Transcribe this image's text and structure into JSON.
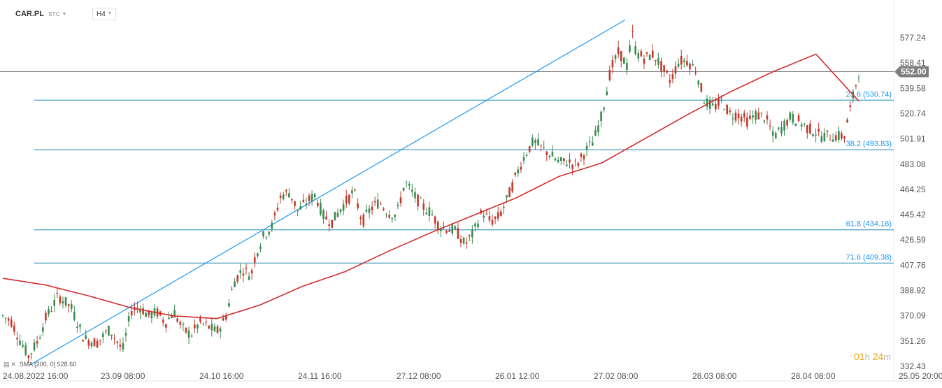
{
  "header": {
    "symbol": "CAR.PL",
    "market": "STC",
    "timeframe": "H4"
  },
  "indicator": {
    "label": "SMA",
    "params": "[200,  0]",
    "value": "528.60"
  },
  "countdown": {
    "hours": "01",
    "hours_unit": "h",
    "minutes": "24",
    "minutes_unit": "m"
  },
  "colors": {
    "up": "#3a8a50",
    "down": "#c0392b",
    "sma": "#d12e2e",
    "trend": "#2196f3",
    "fib": "#1e88b0",
    "price_line": "#777777",
    "price_label_bg": "#7d7d7d",
    "fib_label": "#2196f3"
  },
  "chart_data": {
    "type": "candlestick",
    "symbol": "CAR.PL",
    "timeframe": "H4",
    "y_ticks": [
      "577.24",
      "558.41",
      "539.58",
      "520.74",
      "501.91",
      "483.08",
      "464.25",
      "445.42",
      "426.59",
      "407.76",
      "388.92",
      "370.09",
      "351.26",
      "332.43"
    ],
    "x_ticks": [
      "24.08.2022  16:00",
      "23.09  08:00",
      "24.10  16:00",
      "24.11  16:00",
      "27.12  08:00",
      "26.01  12:00",
      "27.02  08:00",
      "28.03  08:00",
      "28.04  08:00",
      "25.05  20:00"
    ],
    "ylim": [
      332.43,
      577.24
    ],
    "current_price": {
      "value": 552.0,
      "label": "552.00"
    },
    "fibonacci": [
      {
        "label": "23.6 (530.74)",
        "value": 530.74
      },
      {
        "label": "38.2 (493.83)",
        "value": 493.83
      },
      {
        "label": "61.8 (434.16)",
        "value": 434.16
      },
      {
        "label": "71.6 (409.38)",
        "value": 409.38
      }
    ],
    "trendline": {
      "from": {
        "x": 0.032,
        "price": 333.5
      },
      "to": {
        "x": 0.727,
        "price": 590.5
      }
    },
    "sma": [
      [
        0,
        398
      ],
      [
        0.05,
        393
      ],
      [
        0.1,
        385
      ],
      [
        0.15,
        376
      ],
      [
        0.2,
        370
      ],
      [
        0.25,
        368
      ],
      [
        0.3,
        378
      ],
      [
        0.35,
        392
      ],
      [
        0.4,
        403
      ],
      [
        0.45,
        418
      ],
      [
        0.5,
        432
      ],
      [
        0.55,
        445
      ],
      [
        0.6,
        458
      ],
      [
        0.65,
        474
      ],
      [
        0.7,
        484
      ],
      [
        0.75,
        502
      ],
      [
        0.8,
        520
      ],
      [
        0.85,
        537
      ],
      [
        0.9,
        552
      ],
      [
        0.95,
        565
      ],
      [
        1.0,
        530
      ]
    ],
    "price_path": [
      [
        0,
        370
      ],
      [
        0.01,
        366
      ],
      [
        0.02,
        352
      ],
      [
        0.03,
        340
      ],
      [
        0.04,
        350
      ],
      [
        0.05,
        368
      ],
      [
        0.065,
        385
      ],
      [
        0.08,
        376
      ],
      [
        0.095,
        353
      ],
      [
        0.11,
        350
      ],
      [
        0.125,
        360
      ],
      [
        0.14,
        344
      ],
      [
        0.15,
        374
      ],
      [
        0.16,
        377
      ],
      [
        0.17,
        370
      ],
      [
        0.18,
        373
      ],
      [
        0.19,
        365
      ],
      [
        0.2,
        373
      ],
      [
        0.21,
        360
      ],
      [
        0.22,
        356
      ],
      [
        0.23,
        365
      ],
      [
        0.24,
        362
      ],
      [
        0.25,
        358
      ],
      [
        0.26,
        368
      ],
      [
        0.27,
        395
      ],
      [
        0.28,
        405
      ],
      [
        0.29,
        400
      ],
      [
        0.295,
        415
      ],
      [
        0.305,
        430
      ],
      [
        0.315,
        437
      ],
      [
        0.325,
        460
      ],
      [
        0.335,
        462
      ],
      [
        0.345,
        448
      ],
      [
        0.355,
        455
      ],
      [
        0.365,
        460
      ],
      [
        0.375,
        444
      ],
      [
        0.385,
        440
      ],
      [
        0.395,
        450
      ],
      [
        0.41,
        463
      ],
      [
        0.42,
        440
      ],
      [
        0.43,
        450
      ],
      [
        0.44,
        455
      ],
      [
        0.45,
        447
      ],
      [
        0.46,
        445
      ],
      [
        0.47,
        470
      ],
      [
        0.48,
        460
      ],
      [
        0.49,
        452
      ],
      [
        0.5,
        447
      ],
      [
        0.51,
        437
      ],
      [
        0.52,
        435
      ],
      [
        0.53,
        433
      ],
      [
        0.54,
        423
      ],
      [
        0.55,
        432
      ],
      [
        0.56,
        448
      ],
      [
        0.57,
        440
      ],
      [
        0.58,
        444
      ],
      [
        0.59,
        458
      ],
      [
        0.6,
        475
      ],
      [
        0.61,
        490
      ],
      [
        0.62,
        500
      ],
      [
        0.63,
        495
      ],
      [
        0.64,
        490
      ],
      [
        0.65,
        484
      ],
      [
        0.66,
        485
      ],
      [
        0.67,
        482
      ],
      [
        0.68,
        492
      ],
      [
        0.69,
        500
      ],
      [
        0.7,
        520
      ],
      [
        0.71,
        553
      ],
      [
        0.72,
        567
      ],
      [
        0.73,
        555
      ],
      [
        0.735,
        582
      ],
      [
        0.74,
        566
      ],
      [
        0.75,
        562
      ],
      [
        0.76,
        565
      ],
      [
        0.77,
        555
      ],
      [
        0.78,
        545
      ],
      [
        0.79,
        560
      ],
      [
        0.8,
        560
      ],
      [
        0.81,
        553
      ],
      [
        0.82,
        530
      ],
      [
        0.83,
        525
      ],
      [
        0.84,
        530
      ],
      [
        0.85,
        520
      ],
      [
        0.86,
        520
      ],
      [
        0.87,
        515
      ],
      [
        0.88,
        520
      ],
      [
        0.89,
        518
      ],
      [
        0.895,
        513
      ],
      [
        0.9,
        503
      ],
      [
        0.91,
        510
      ],
      [
        0.92,
        518
      ],
      [
        0.93,
        515
      ],
      [
        0.94,
        510
      ],
      [
        0.95,
        507
      ],
      [
        0.955,
        504
      ],
      [
        1.0,
        552
      ]
    ]
  }
}
